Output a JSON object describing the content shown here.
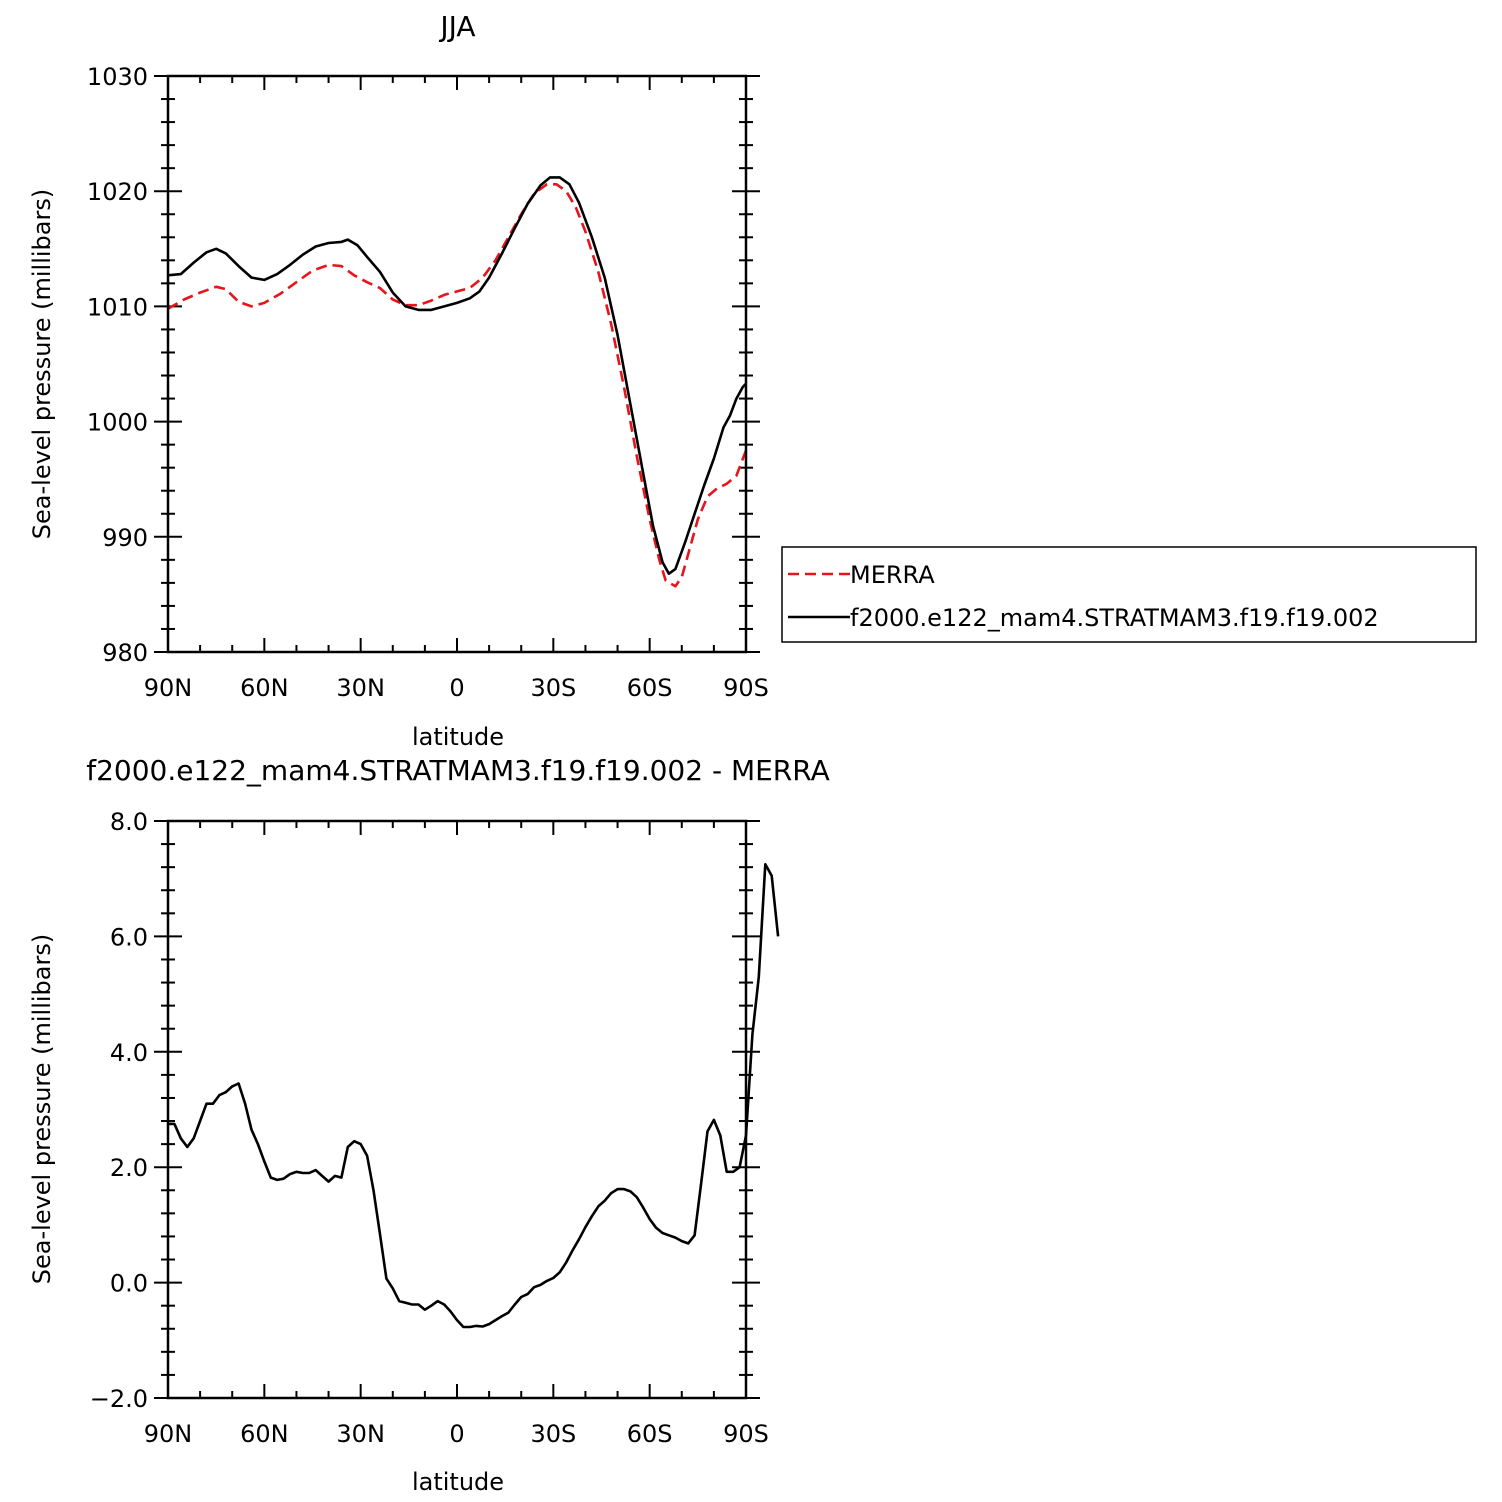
{
  "chart_data": [
    {
      "type": "line",
      "title": "JJA",
      "xlabel": "latitude",
      "ylabel": "Sea-level pressure (millibars)",
      "x_range": [
        90,
        -90
      ],
      "ylim": [
        980,
        1030
      ],
      "x_ticks": [
        90,
        60,
        30,
        0,
        -30,
        -60,
        -90
      ],
      "x_tick_labels": [
        "90N",
        "60N",
        "30N",
        "0",
        "30S",
        "60S",
        "90S"
      ],
      "y_ticks": [
        980,
        990,
        1000,
        1010,
        1020,
        1030
      ],
      "y_tick_labels": [
        "980",
        "990",
        "1000",
        "1010",
        "1020",
        "1030"
      ],
      "grid": false,
      "legend_position": "right",
      "series": [
        {
          "name": "MERRA",
          "color": "#e8141b",
          "dash": "dashed",
          "points": [
            [
              90,
              1009.8
            ],
            [
              85,
              1010.6
            ],
            [
              80,
              1011.2
            ],
            [
              75,
              1011.7
            ],
            [
              72,
              1011.5
            ],
            [
              68,
              1010.4
            ],
            [
              64,
              1010.0
            ],
            [
              60,
              1010.3
            ],
            [
              55,
              1011.1
            ],
            [
              50,
              1012.1
            ],
            [
              45,
              1013.1
            ],
            [
              40,
              1013.6
            ],
            [
              36,
              1013.5
            ],
            [
              32,
              1012.7
            ],
            [
              28,
              1012.1
            ],
            [
              24,
              1011.6
            ],
            [
              20,
              1010.6
            ],
            [
              16,
              1010.1
            ],
            [
              12,
              1010.1
            ],
            [
              8,
              1010.5
            ],
            [
              4,
              1011.0
            ],
            [
              0,
              1011.3
            ],
            [
              -4,
              1011.6
            ],
            [
              -8,
              1012.5
            ],
            [
              -12,
              1014.0
            ],
            [
              -16,
              1016.0
            ],
            [
              -20,
              1018.0
            ],
            [
              -24,
              1019.8
            ],
            [
              -28,
              1020.6
            ],
            [
              -31,
              1020.6
            ],
            [
              -34,
              1020.0
            ],
            [
              -37,
              1018.6
            ],
            [
              -40,
              1016.5
            ],
            [
              -44,
              1013.0
            ],
            [
              -48,
              1008.5
            ],
            [
              -52,
              1003.0
            ],
            [
              -56,
              997.0
            ],
            [
              -60,
              991.5
            ],
            [
              -63,
              988.0
            ],
            [
              -65,
              986.2
            ],
            [
              -68,
              985.7
            ],
            [
              -70,
              986.5
            ],
            [
              -72,
              988.5
            ],
            [
              -75,
              991.5
            ],
            [
              -78,
              993.5
            ],
            [
              -81,
              994.2
            ],
            [
              -84,
              994.6
            ],
            [
              -87,
              995.3
            ],
            [
              -90,
              997.5
            ]
          ]
        },
        {
          "name": "f2000.e122_mam4.STRATMAM3.f19.f19.002",
          "color": "#000000",
          "dash": "solid",
          "points": [
            [
              90,
              1012.7
            ],
            [
              86,
              1012.8
            ],
            [
              82,
              1013.8
            ],
            [
              78,
              1014.7
            ],
            [
              75,
              1015.0
            ],
            [
              72,
              1014.6
            ],
            [
              68,
              1013.5
            ],
            [
              64,
              1012.5
            ],
            [
              60,
              1012.3
            ],
            [
              56,
              1012.8
            ],
            [
              52,
              1013.6
            ],
            [
              48,
              1014.5
            ],
            [
              44,
              1015.2
            ],
            [
              40,
              1015.5
            ],
            [
              36,
              1015.6
            ],
            [
              34,
              1015.8
            ],
            [
              31,
              1015.3
            ],
            [
              28,
              1014.3
            ],
            [
              24,
              1013.0
            ],
            [
              20,
              1011.2
            ],
            [
              16,
              1010.0
            ],
            [
              12,
              1009.7
            ],
            [
              8,
              1009.7
            ],
            [
              4,
              1010.0
            ],
            [
              0,
              1010.3
            ],
            [
              -4,
              1010.7
            ],
            [
              -7,
              1011.3
            ],
            [
              -10,
              1012.5
            ],
            [
              -14,
              1014.6
            ],
            [
              -18,
              1016.8
            ],
            [
              -22,
              1018.9
            ],
            [
              -26,
              1020.5
            ],
            [
              -29,
              1021.2
            ],
            [
              -32,
              1021.2
            ],
            [
              -35,
              1020.6
            ],
            [
              -38,
              1019.0
            ],
            [
              -42,
              1016.0
            ],
            [
              -46,
              1012.5
            ],
            [
              -50,
              1007.5
            ],
            [
              -54,
              1001.5
            ],
            [
              -58,
              995.5
            ],
            [
              -61,
              991.0
            ],
            [
              -64,
              987.8
            ],
            [
              -66,
              986.8
            ],
            [
              -68,
              987.2
            ],
            [
              -71,
              989.5
            ],
            [
              -74,
              992.0
            ],
            [
              -77,
              994.5
            ],
            [
              -80,
              996.8
            ],
            [
              -83,
              999.5
            ],
            [
              -85,
              1000.5
            ],
            [
              -87,
              1002.0
            ],
            [
              -89,
              1003.0
            ],
            [
              -90,
              1003.3
            ]
          ]
        }
      ]
    },
    {
      "type": "line",
      "title": "f2000.e122_mam4.STRATMAM3.f19.f19.002  -  MERRA",
      "xlabel": "latitude",
      "ylabel": "Sea-level pressure (millibars)",
      "x_range": [
        90,
        -90
      ],
      "ylim": [
        -2.0,
        8.0
      ],
      "x_ticks": [
        90,
        60,
        30,
        0,
        -30,
        -60,
        -90
      ],
      "x_tick_labels": [
        "90N",
        "60N",
        "30N",
        "0",
        "30S",
        "60S",
        "90S"
      ],
      "y_ticks": [
        -2,
        0,
        2,
        4,
        6,
        8
      ],
      "y_tick_labels": [
        "−2.0",
        "0.0",
        "2.0",
        "4.0",
        "6.0",
        "8.0"
      ],
      "grid": false,
      "series": [
        {
          "color": "#000000",
          "dash": "solid",
          "points": [
            [
              90,
              2.75
            ],
            [
              88,
              2.75
            ],
            [
              86,
              2.5
            ],
            [
              84,
              2.35
            ],
            [
              82,
              2.5
            ],
            [
              80,
              2.8
            ],
            [
              78,
              3.1
            ],
            [
              76,
              3.1
            ],
            [
              74,
              3.25
            ],
            [
              72,
              3.3
            ],
            [
              70,
              3.4
            ],
            [
              68,
              3.45
            ],
            [
              66,
              3.1
            ],
            [
              64,
              2.65
            ],
            [
              62,
              2.4
            ],
            [
              60,
              2.1
            ],
            [
              58,
              1.82
            ],
            [
              56,
              1.78
            ],
            [
              54,
              1.8
            ],
            [
              52,
              1.88
            ],
            [
              50,
              1.92
            ],
            [
              48,
              1.9
            ],
            [
              46,
              1.9
            ],
            [
              44,
              1.95
            ],
            [
              42,
              1.85
            ],
            [
              40,
              1.75
            ],
            [
              38,
              1.85
            ],
            [
              36,
              1.82
            ],
            [
              34,
              2.35
            ],
            [
              32,
              2.45
            ],
            [
              30,
              2.4
            ],
            [
              28,
              2.2
            ],
            [
              26,
              1.6
            ],
            [
              24,
              0.85
            ],
            [
              22,
              0.07
            ],
            [
              20,
              -0.1
            ],
            [
              18,
              -0.32
            ],
            [
              16,
              -0.35
            ],
            [
              14,
              -0.38
            ],
            [
              12,
              -0.38
            ],
            [
              10,
              -0.47
            ],
            [
              8,
              -0.4
            ],
            [
              6,
              -0.32
            ],
            [
              4,
              -0.38
            ],
            [
              2,
              -0.5
            ],
            [
              0,
              -0.65
            ],
            [
              -2,
              -0.77
            ],
            [
              -4,
              -0.77
            ],
            [
              -6,
              -0.75
            ],
            [
              -8,
              -0.76
            ],
            [
              -10,
              -0.72
            ],
            [
              -12,
              -0.65
            ],
            [
              -14,
              -0.58
            ],
            [
              -16,
              -0.52
            ],
            [
              -18,
              -0.38
            ],
            [
              -20,
              -0.25
            ],
            [
              -22,
              -0.2
            ],
            [
              -24,
              -0.08
            ],
            [
              -26,
              -0.04
            ],
            [
              -28,
              0.03
            ],
            [
              -30,
              0.08
            ],
            [
              -32,
              0.18
            ],
            [
              -34,
              0.35
            ],
            [
              -36,
              0.56
            ],
            [
              -38,
              0.75
            ],
            [
              -40,
              0.96
            ],
            [
              -42,
              1.15
            ],
            [
              -44,
              1.32
            ],
            [
              -46,
              1.42
            ],
            [
              -48,
              1.55
            ],
            [
              -50,
              1.62
            ],
            [
              -52,
              1.62
            ],
            [
              -54,
              1.58
            ],
            [
              -56,
              1.48
            ],
            [
              -58,
              1.3
            ],
            [
              -60,
              1.1
            ],
            [
              -62,
              0.95
            ],
            [
              -64,
              0.86
            ],
            [
              -66,
              0.82
            ],
            [
              -68,
              0.78
            ],
            [
              -70,
              0.72
            ],
            [
              -72,
              0.68
            ],
            [
              -74,
              0.82
            ],
            [
              -76,
              1.7
            ],
            [
              -78,
              2.62
            ],
            [
              -80,
              2.82
            ],
            [
              -82,
              2.55
            ],
            [
              -84,
              1.92
            ],
            [
              -86,
              1.92
            ],
            [
              -88,
              2.0
            ],
            [
              -90,
              2.55
            ]
          ]
        },
        {
          "color": "#000000",
          "dash": "solid",
          "points": [
            [
              -90,
              2.55
            ],
            [
              -92,
              4.3
            ],
            [
              -94,
              5.3
            ],
            [
              -96,
              7.25
            ],
            [
              -98,
              7.05
            ],
            [
              -100,
              6.0
            ]
          ]
        }
      ]
    }
  ]
}
